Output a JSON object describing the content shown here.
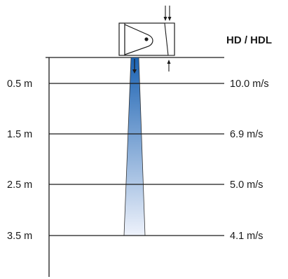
{
  "product": {
    "title": "HD / HDL"
  },
  "distances": [
    {
      "label": "0.5 m",
      "velocity": "10.0 m/s"
    },
    {
      "label": "1.5 m",
      "velocity": "6.9 m/s"
    },
    {
      "label": "2.5 m",
      "velocity": "5.0 m/s"
    },
    {
      "label": "3.5 m",
      "velocity": "4.1 m/s"
    }
  ],
  "colors": {
    "beam_top": "#1c63b3",
    "beam_bottom": "#eef2fb",
    "line": "#1a1a1a"
  },
  "icons": {
    "device": "air-curtain-unit-icon",
    "airflow": "arrow-down-icon",
    "intake": "arrow-down-double-icon",
    "mount": "arrow-up-icon"
  }
}
